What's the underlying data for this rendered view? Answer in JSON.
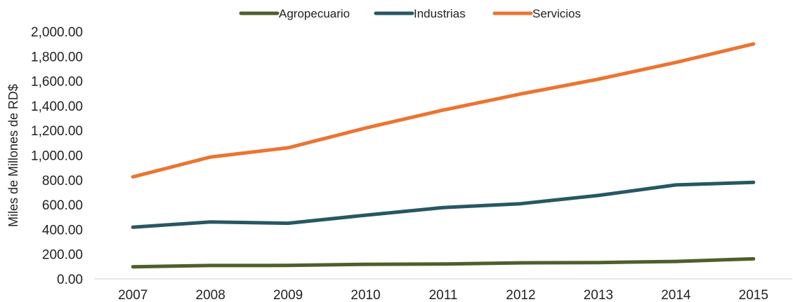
{
  "chart_data": {
    "type": "line",
    "title": "",
    "xlabel": "",
    "ylabel": "Miles de Millones de RD$",
    "categories": [
      "2007",
      "2008",
      "2009",
      "2010",
      "2011",
      "2012",
      "2013",
      "2014",
      "2015"
    ],
    "y_ticks": [
      "0.00",
      "200.00",
      "400.00",
      "600.00",
      "800.00",
      "1,000.00",
      "1,200.00",
      "1,400.00",
      "1,600.00",
      "1,800.00",
      "2,000.00"
    ],
    "ylim": [
      0,
      2000
    ],
    "grid": false,
    "legend_position": "top",
    "series": [
      {
        "name": "Agropecuario",
        "color": "#4e5f2a",
        "values": [
          98,
          108,
          109,
          118,
          120,
          130,
          132,
          141,
          162
        ]
      },
      {
        "name": "Industrias",
        "color": "#275763",
        "values": [
          418,
          460,
          450,
          515,
          577,
          608,
          675,
          760,
          780
        ]
      },
      {
        "name": "Servicios",
        "color": "#ec7430",
        "values": [
          825,
          985,
          1060,
          1220,
          1365,
          1495,
          1615,
          1750,
          1900
        ]
      }
    ]
  }
}
